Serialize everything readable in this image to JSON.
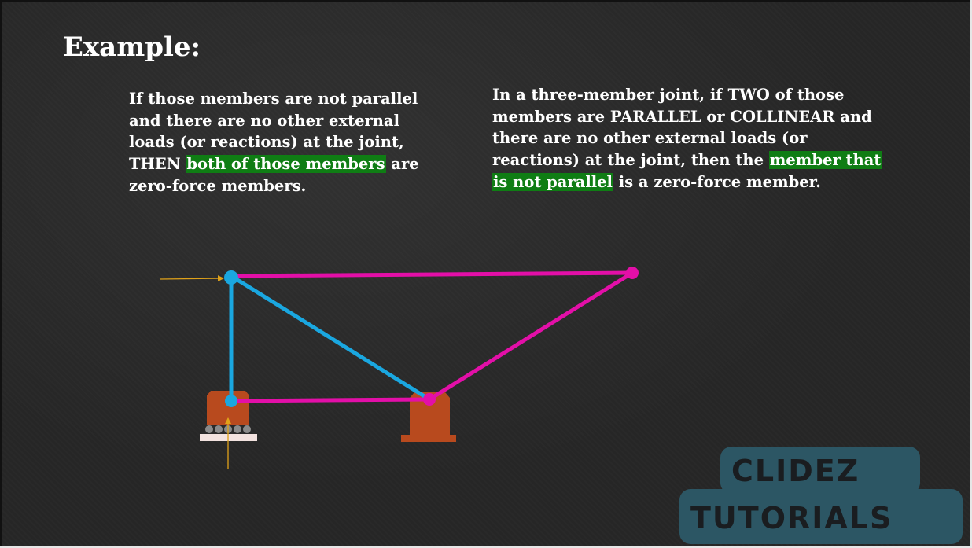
{
  "slide": {
    "title": "Example:",
    "left_paragraph": {
      "lines": [
        "If those members are not parallel",
        "and there are no other external",
        "loads (or reactions) at the joint,"
      ],
      "line4_before": "THEN ",
      "line4_highlight": "both of those members",
      "line4_after": " are",
      "line5": "zero-force members."
    },
    "right_paragraph": {
      "lines": [
        "In a three-member joint, if TWO of those",
        "members are PARALLEL or COLLINEAR and",
        "there are no other external loads (or"
      ],
      "line4_before": "reactions) at the joint, then the ",
      "line4_highlight": "member that",
      "line5_highlight": "is not parallel",
      "line5_after": " is a zero-force member."
    }
  },
  "colors": {
    "background": "#262626",
    "text": "#ffffff",
    "highlight": "#0f7d14",
    "zero_force_member": "#1aa7e0",
    "other_member": "#e30fa8",
    "support": "#b84a1e",
    "load_arrow": "#e0a21a"
  },
  "diagram": {
    "members": [
      {
        "from": "A",
        "to": "B",
        "kind": "other_member"
      },
      {
        "from": "B",
        "to": "C",
        "kind": "other_member"
      },
      {
        "from": "C",
        "to": "D",
        "kind": "other_member"
      },
      {
        "from": "A",
        "to": "D",
        "kind": "zero_force_member"
      },
      {
        "from": "A",
        "to": "C",
        "kind": "zero_force_member"
      }
    ],
    "supports": [
      "roller",
      "pin"
    ],
    "loads": [
      "horizontal load at joint",
      "vertical reaction at roller"
    ]
  },
  "watermark": {
    "line1": "CLIDEZ",
    "line2": "TUTORIALS"
  }
}
